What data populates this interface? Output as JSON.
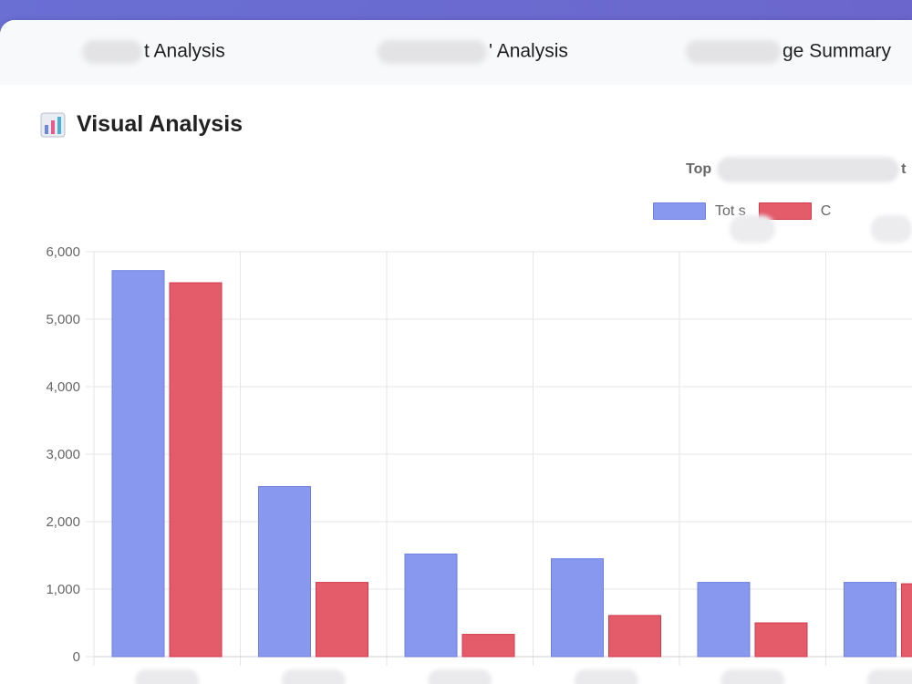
{
  "tabs": [
    {
      "label": "t Analysis"
    },
    {
      "label": "' Analysis"
    },
    {
      "label": "ge Summary"
    }
  ],
  "section": {
    "title": "Visual Analysis",
    "icon": "bar-chart-icon"
  },
  "colors": {
    "series1": "#8798ee",
    "series2": "#e45b6a",
    "header": "#6a6fd4"
  },
  "chart_data": {
    "type": "bar",
    "title": "Top",
    "categories": [
      "",
      "",
      "",
      "",
      "",
      ""
    ],
    "series": [
      {
        "name": "Tot     s",
        "values": [
          5720,
          2520,
          1520,
          1450,
          1100,
          1100
        ]
      },
      {
        "name": "C",
        "values": [
          5540,
          1100,
          330,
          610,
          500,
          1080
        ]
      }
    ],
    "ylim": [
      0,
      6000
    ],
    "yticks": [
      "0",
      "1,000",
      "2,000",
      "3,000",
      "4,000",
      "5,000",
      "6,000"
    ],
    "grid": true,
    "legend": "top-right"
  }
}
